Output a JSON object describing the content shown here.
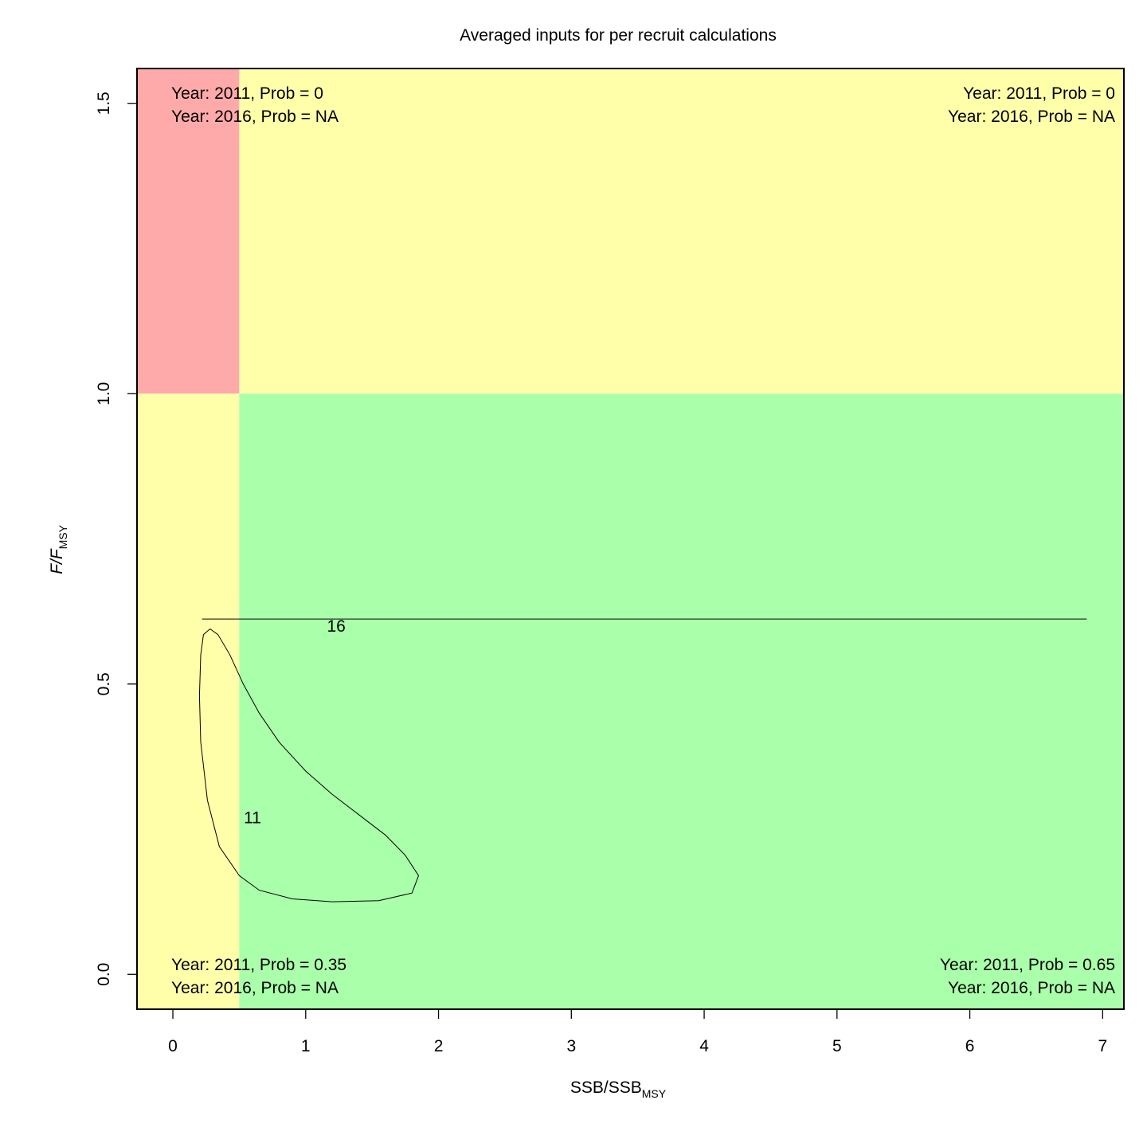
{
  "chart_data": {
    "type": "contour",
    "title": "Averaged inputs for per recruit calculations",
    "xlabel": {
      "main": "SSB/SSB",
      "sub": "MSY"
    },
    "ylabel": {
      "main": "F/F",
      "sub": "MSY"
    },
    "xlim": [
      -0.27,
      7.16
    ],
    "ylim": [
      -0.06,
      1.56
    ],
    "x_ticks": [
      0,
      1,
      2,
      3,
      4,
      5,
      6,
      7
    ],
    "y_ticks": [
      0.0,
      0.5,
      1.0,
      1.5
    ],
    "x_tick_labels": [
      "0",
      "1",
      "2",
      "3",
      "4",
      "5",
      "6",
      "7"
    ],
    "y_tick_labels": [
      "0.0",
      "0.5",
      "1.0",
      "1.5"
    ],
    "reference_points": {
      "ssb_limit": 0.5,
      "f_limit": 1.0
    },
    "zones": [
      {
        "name": "overfished-overfishing",
        "x_range": [
          -0.27,
          0.5
        ],
        "y_range": [
          1.0,
          1.56
        ],
        "color": "#ffaaaa"
      },
      {
        "name": "healthy-overfishing",
        "x_range": [
          0.5,
          7.16
        ],
        "y_range": [
          1.0,
          1.56
        ],
        "color": "#ffffaa"
      },
      {
        "name": "overfished-no-overfishing",
        "x_range": [
          -0.27,
          0.5
        ],
        "y_range": [
          -0.06,
          1.0
        ],
        "color": "#ffffaa"
      },
      {
        "name": "healthy-no-overfishing",
        "x_range": [
          0.5,
          7.16
        ],
        "y_range": [
          -0.06,
          1.0
        ],
        "color": "#aaffaa"
      }
    ],
    "quadrant_labels": [
      {
        "position": "top-left",
        "lines": [
          "Year: 2011, Prob = 0",
          "Year: 2016, Prob = NA"
        ]
      },
      {
        "position": "top-right",
        "lines": [
          "Year: 2011, Prob = 0",
          "Year: 2016, Prob = NA"
        ]
      },
      {
        "position": "bottom-left",
        "lines": [
          "Year: 2011, Prob = 0.35",
          "Year: 2016, Prob = NA"
        ]
      },
      {
        "position": "bottom-right",
        "lines": [
          "Year: 2011, Prob = 0.65",
          "Year: 2016, Prob = NA"
        ]
      }
    ],
    "contours": [
      {
        "label": "11",
        "label_at": [
          0.6,
          0.27
        ],
        "points": [
          [
            0.28,
            0.595
          ],
          [
            0.34,
            0.585
          ],
          [
            0.43,
            0.55
          ],
          [
            0.53,
            0.5
          ],
          [
            0.65,
            0.45
          ],
          [
            0.8,
            0.4
          ],
          [
            1.0,
            0.35
          ],
          [
            1.2,
            0.31
          ],
          [
            1.4,
            0.275
          ],
          [
            1.6,
            0.24
          ],
          [
            1.75,
            0.205
          ],
          [
            1.85,
            0.17
          ],
          [
            1.8,
            0.14
          ],
          [
            1.55,
            0.127
          ],
          [
            1.2,
            0.125
          ],
          [
            0.9,
            0.13
          ],
          [
            0.65,
            0.145
          ],
          [
            0.5,
            0.17
          ],
          [
            0.35,
            0.22
          ],
          [
            0.26,
            0.3
          ],
          [
            0.21,
            0.4
          ],
          [
            0.2,
            0.48
          ],
          [
            0.21,
            0.55
          ],
          [
            0.23,
            0.585
          ],
          [
            0.28,
            0.595
          ]
        ]
      },
      {
        "label": "16",
        "label_at": [
          1.23,
          0.6
        ],
        "points": [
          [
            0.22,
            0.612
          ],
          [
            6.88,
            0.612
          ]
        ]
      }
    ]
  }
}
